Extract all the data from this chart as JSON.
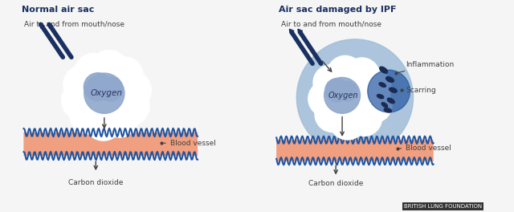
{
  "bg_color": "#f5f5f5",
  "left_title": "Normal air sac",
  "right_title": "Air sac damaged by IPF",
  "subtitle": "Air to and from mouth/nose",
  "left_labels": {
    "oxygen": "Oxygen",
    "blood_vessel": "Blood vessel",
    "carbon_dioxide": "Carbon dioxide"
  },
  "right_labels": {
    "oxygen": "Oxygen",
    "inflammation": "Inflammation",
    "scarring": "Scarring",
    "blood_vessel": "Blood vessel",
    "carbon_dioxide": "Carbon dioxide"
  },
  "footer": "BRITISH LUNG FOUNDATION",
  "blue_dark": "#1a3060",
  "blue_mid": "#2255a0",
  "blue_light": "#5080c0",
  "blue_pale": "#aac4e0",
  "blue_sac": "#a0bdd8",
  "salmon": "#f0a080",
  "oxygen_color": "#8fa8cc",
  "white": "#ffffff",
  "label_color": "#404040",
  "title_color": "#1a3060",
  "scar_color": "#1a2a50"
}
